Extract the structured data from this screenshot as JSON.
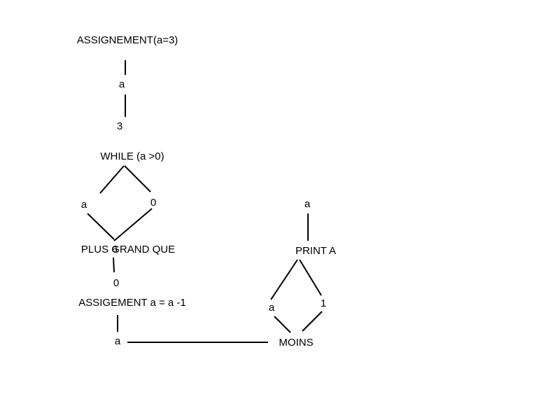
{
  "nodes": {
    "assignment_title": "ASSIGNEMENT(a=3)",
    "assignment_var": "a",
    "assignment_value": "3",
    "while_title": "WHILE (a >0)",
    "while_left": "a",
    "while_right": "0",
    "compare_op": "PLUS GRAND QUE",
    "compare_overlap": "a",
    "compare_child": "0",
    "decrement_title": "ASSIGEMENT a = a -1",
    "decrement_var": "a",
    "minus_op": "MOINS",
    "minus_left": "a",
    "minus_right": "1",
    "print_op": "PRINT A",
    "print_var": "a"
  },
  "colors": {
    "background": "#ffffff",
    "ink": "#000000"
  }
}
